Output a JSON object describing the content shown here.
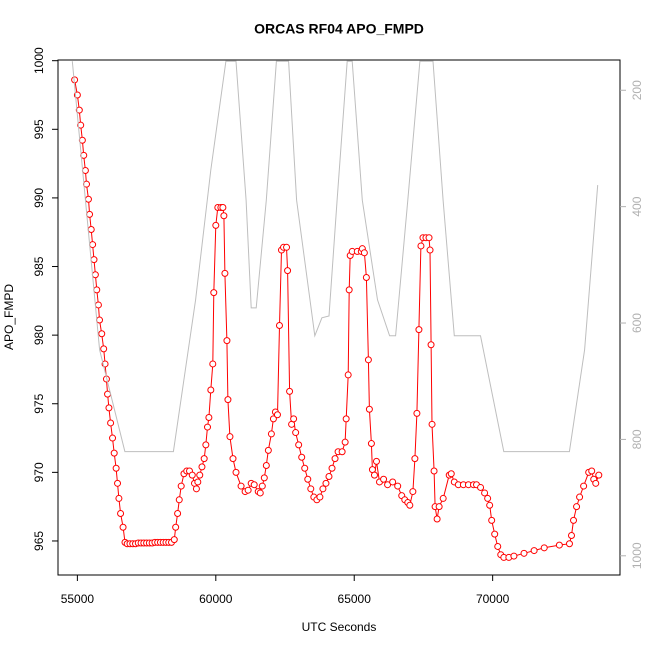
{
  "chart_data": {
    "type": "line",
    "title": "ORCAS RF04 APO_FMPD",
    "xlabel": "UTC Seconds",
    "ylabel": "APO_FMPD",
    "xlim": [
      54300,
      74600
    ],
    "xticks": [
      55000,
      60000,
      65000,
      70000
    ],
    "ylim": [
      962.52,
      1000.05
    ],
    "yticks": [
      965,
      970,
      975,
      980,
      985,
      990,
      995,
      1000
    ],
    "y2lim": [
      1033,
      148
    ],
    "y2ticks": [
      200,
      400,
      600,
      800,
      1000
    ],
    "series": [
      {
        "color": "#ff0000",
        "marker": "circle",
        "x": [
          54900,
          55000,
          55070,
          55120,
          55180,
          55230,
          55290,
          55330,
          55400,
          55440,
          55500,
          55550,
          55600,
          55650,
          55700,
          55760,
          55800,
          55880,
          55950,
          56000,
          56050,
          56090,
          56140,
          56200,
          56270,
          56330,
          56400,
          56450,
          56500,
          56560,
          56650,
          56720,
          56800,
          56900,
          57000,
          57100,
          57200,
          57300,
          57400,
          57500,
          57600,
          57700,
          57800,
          57900,
          58000,
          58100,
          58200,
          58300,
          58400,
          58500,
          58550,
          58620,
          58680,
          58750,
          58850,
          58950,
          59050,
          59150,
          59230,
          59300,
          59350,
          59420,
          59500,
          59580,
          59640,
          59700,
          59750,
          59820,
          59891,
          59927,
          60000,
          60073,
          60183,
          60256,
          60292,
          60329,
          60402,
          60438,
          60511,
          60621,
          60730,
          60913,
          61059,
          61168,
          61278,
          61387,
          61533,
          61606,
          61679,
          61752,
          61825,
          61898,
          62008,
          62081,
          62154,
          62227,
          62300,
          62373,
          62446,
          62555,
          62592,
          62665,
          62738,
          62811,
          62884,
          62993,
          63103,
          63212,
          63322,
          63431,
          63541,
          63650,
          63760,
          63869,
          63979,
          64088,
          64198,
          64307,
          64417,
          64563,
          64672,
          64709,
          64782,
          64818,
          64855,
          64928,
          65110,
          65256,
          65293,
          65366,
          65439,
          65512,
          65548,
          65621,
          65658,
          65731,
          65804,
          65913,
          66060,
          66205,
          66388,
          66570,
          66716,
          66826,
          66935,
          67008,
          67118,
          67191,
          67264,
          67337,
          67410,
          67483,
          67592,
          67702,
          67738,
          67775,
          67811,
          67884,
          67921,
          67994,
          68067,
          68213,
          68432,
          68505,
          68614,
          68760,
          68943,
          69125,
          69308,
          69417,
          69563,
          69709,
          69819,
          69892,
          69965,
          70074,
          70184,
          70293,
          70403,
          70585,
          70768,
          71133,
          71498,
          71863,
          72410,
          72775,
          72848,
          72921,
          73031,
          73140,
          73286,
          73469,
          73578,
          73651,
          73724,
          73834
        ],
        "values": [
          998.6,
          997.5,
          996.4,
          995.3,
          994.2,
          993.1,
          992,
          991,
          989.9,
          988.8,
          987.7,
          986.6,
          985.5,
          984.4,
          983.3,
          982.2,
          981.1,
          980.1,
          979,
          977.9,
          976.8,
          975.7,
          974.7,
          973.6,
          972.5,
          971.4,
          970.3,
          969.2,
          968.1,
          967,
          966,
          964.9,
          964.8,
          964.8,
          964.8,
          964.8,
          964.85,
          964.85,
          964.85,
          964.85,
          964.85,
          964.85,
          964.9,
          964.9,
          964.9,
          964.9,
          964.9,
          964.9,
          964.9,
          965.1,
          966,
          967,
          968,
          969,
          969.9,
          970.1,
          970.1,
          969.8,
          969.2,
          968.8,
          969.3,
          969.8,
          970.4,
          971,
          972,
          973.3,
          974,
          976,
          977.9,
          983.1,
          988,
          989.3,
          989.3,
          989.3,
          988.7,
          984.5,
          979.6,
          975.3,
          972.6,
          971,
          970,
          969,
          968.6,
          968.7,
          969.2,
          969.1,
          968.6,
          968.5,
          969,
          969.6,
          970.5,
          971.6,
          972.8,
          973.9,
          974.4,
          974.2,
          980.7,
          986.2,
          986.4,
          986.4,
          984.7,
          975.9,
          973.5,
          973.9,
          972.9,
          972,
          971.1,
          970.3,
          969.5,
          968.8,
          968.2,
          968,
          968.2,
          968.8,
          969.2,
          969.7,
          970.3,
          971,
          971.5,
          971.5,
          972.2,
          973.9,
          977.1,
          983.3,
          985.8,
          986.1,
          986.1,
          986.1,
          986.3,
          986,
          984.2,
          978.2,
          974.6,
          972.1,
          970.2,
          969.8,
          970.8,
          969.3,
          969.5,
          969.1,
          969.3,
          969,
          968.3,
          968,
          967.8,
          967.6,
          968.6,
          971,
          974.3,
          980.4,
          986.5,
          987.1,
          987.1,
          987.1,
          986.2,
          979.3,
          973.5,
          970.1,
          967.5,
          966.6,
          967.5,
          968.1,
          969.8,
          969.9,
          969.3,
          969.1,
          969.1,
          969.1,
          969.1,
          969.1,
          968.9,
          968.5,
          968.1,
          967.6,
          966.5,
          965.5,
          964.6,
          964,
          963.8,
          963.8,
          963.9,
          964.1,
          964.3,
          964.5,
          964.7,
          964.8,
          965.4,
          966.5,
          967.5,
          968.2,
          969,
          970,
          970.1,
          969.5,
          969.2,
          969.8
        ]
      },
      {
        "color": "#bebebe",
        "axis": "y2",
        "x": [
          54818,
          55803,
          56715,
          58467,
          59270,
          59818,
          60365,
          60730,
          61095,
          61277,
          61460,
          61825,
          62190,
          62628,
          62920,
          63577,
          63832,
          64088,
          64380,
          64745,
          64927,
          65292,
          65839,
          66277,
          66496,
          66934,
          67372,
          67847,
          68212,
          68613,
          69562,
          70401,
          72774,
          73321,
          73796
        ],
        "values": [
          150,
          646,
          821,
          821,
          560,
          337,
          150,
          150,
          389,
          574,
          574,
          389,
          150,
          150,
          389,
          622,
          591,
          588,
          389,
          150,
          150,
          389,
          560,
          622,
          622,
          389,
          150,
          150,
          389,
          622,
          622,
          821,
          821,
          646,
          363
        ]
      }
    ]
  }
}
